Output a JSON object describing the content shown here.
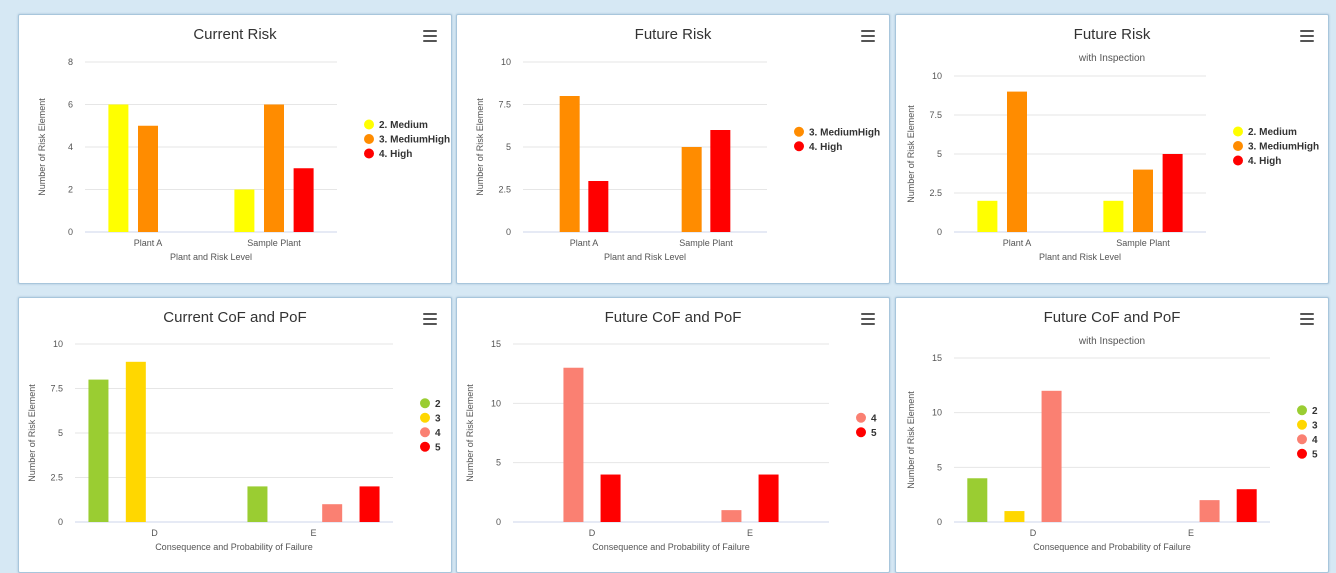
{
  "chart_data": [
    {
      "type": "bar",
      "title": "Current Risk",
      "subtitle": "",
      "xlabel": "Plant and Risk Level",
      "ylabel": "Number of Risk Element",
      "categories": [
        "Plant A",
        "Sample Plant"
      ],
      "ylim": [
        0,
        8
      ],
      "yticks": [
        0,
        2,
        4,
        6,
        8
      ],
      "series": [
        {
          "name": "2. Medium",
          "color": "#ffff00",
          "values": [
            6,
            2
          ]
        },
        {
          "name": "3. MediumHigh",
          "color": "#ff8c00",
          "values": [
            5,
            6
          ]
        },
        {
          "name": "4. High",
          "color": "#ff0000",
          "values": [
            0,
            3
          ]
        }
      ],
      "legend": "right"
    },
    {
      "type": "bar",
      "title": "Future Risk",
      "subtitle": "",
      "xlabel": "Plant and Risk Level",
      "ylabel": "Number of Risk Element",
      "categories": [
        "Plant A",
        "Sample Plant"
      ],
      "ylim": [
        0,
        10
      ],
      "yticks": [
        0,
        2.5,
        5,
        7.5,
        10
      ],
      "series": [
        {
          "name": "3. MediumHigh",
          "color": "#ff8c00",
          "values": [
            8,
            5
          ]
        },
        {
          "name": "4. High",
          "color": "#ff0000",
          "values": [
            3,
            6
          ]
        }
      ],
      "legend": "right"
    },
    {
      "type": "bar",
      "title": "Future Risk",
      "subtitle": "with Inspection",
      "xlabel": "Plant and Risk Level",
      "ylabel": "Number of Risk Element",
      "categories": [
        "Plant A",
        "Sample Plant"
      ],
      "ylim": [
        0,
        10
      ],
      "yticks": [
        0,
        2.5,
        5,
        7.5,
        10
      ],
      "series": [
        {
          "name": "2. Medium",
          "color": "#ffff00",
          "values": [
            2,
            2
          ]
        },
        {
          "name": "3. MediumHigh",
          "color": "#ff8c00",
          "values": [
            9,
            4
          ]
        },
        {
          "name": "4. High",
          "color": "#ff0000",
          "values": [
            0,
            5
          ]
        }
      ],
      "legend": "right"
    },
    {
      "type": "bar",
      "title": "Current CoF and PoF",
      "subtitle": "",
      "xlabel": "Consequence and Probability of Failure",
      "ylabel": "Number of Risk Element",
      "categories": [
        "D",
        "E"
      ],
      "ylim": [
        0,
        10
      ],
      "yticks": [
        0,
        2.5,
        5,
        7.5,
        10
      ],
      "series": [
        {
          "name": "2",
          "color": "#9acd32",
          "values": [
            8,
            2
          ]
        },
        {
          "name": "3",
          "color": "#ffd700",
          "values": [
            9,
            0
          ]
        },
        {
          "name": "4",
          "color": "#fa8072",
          "values": [
            0,
            1
          ]
        },
        {
          "name": "5",
          "color": "#ff0000",
          "values": [
            0,
            2
          ]
        }
      ],
      "legend": "right"
    },
    {
      "type": "bar",
      "title": "Future CoF and PoF",
      "subtitle": "",
      "xlabel": "Consequence and Probability of Failure",
      "ylabel": "Number of Risk Element",
      "categories": [
        "D",
        "E"
      ],
      "ylim": [
        0,
        15
      ],
      "yticks": [
        0,
        5,
        10,
        15
      ],
      "series": [
        {
          "name": "4",
          "color": "#fa8072",
          "values": [
            13,
            1
          ]
        },
        {
          "name": "5",
          "color": "#ff0000",
          "values": [
            4,
            4
          ]
        }
      ],
      "legend": "right"
    },
    {
      "type": "bar",
      "title": "Future CoF and PoF",
      "subtitle": "with Inspection",
      "xlabel": "Consequence and Probability of Failure",
      "ylabel": "Number of Risk Element",
      "categories": [
        "D",
        "E"
      ],
      "ylim": [
        0,
        15
      ],
      "yticks": [
        0,
        5,
        10,
        15
      ],
      "series": [
        {
          "name": "2",
          "color": "#9acd32",
          "values": [
            4,
            0
          ]
        },
        {
          "name": "3",
          "color": "#ffd700",
          "values": [
            1,
            0
          ]
        },
        {
          "name": "4",
          "color": "#fa8072",
          "values": [
            12,
            2
          ]
        },
        {
          "name": "5",
          "color": "#ff0000",
          "values": [
            0,
            3
          ]
        }
      ],
      "legend": "right"
    }
  ]
}
